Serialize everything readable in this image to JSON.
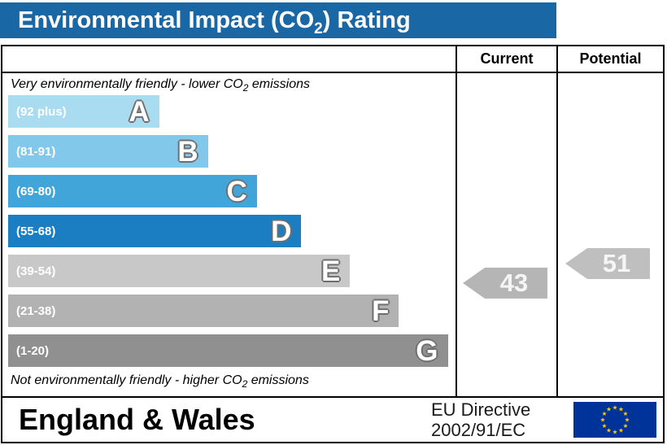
{
  "title": {
    "prefix": "Environmental Impact (CO",
    "sub": "2",
    "suffix": ") Rating"
  },
  "columns": {
    "current": "Current",
    "potential": "Potential"
  },
  "notes": {
    "top": {
      "prefix": "Very environmentally friendly - lower CO",
      "sub": "2",
      "suffix": " emissions"
    },
    "bottom": {
      "prefix": "Not environmentally friendly - higher CO",
      "sub": "2",
      "suffix": " emissions"
    }
  },
  "chart_data": {
    "type": "bar",
    "title": "Environmental Impact (CO2) Rating",
    "bands": [
      {
        "letter": "A",
        "range_label": "(92 plus)",
        "color": "#aadcf1",
        "width_pct": 34
      },
      {
        "letter": "B",
        "range_label": "(81-91)",
        "color": "#82c8ea",
        "width_pct": 45
      },
      {
        "letter": "C",
        "range_label": "(69-80)",
        "color": "#42a5da",
        "width_pct": 56
      },
      {
        "letter": "D",
        "range_label": "(55-68)",
        "color": "#1b7ec2",
        "width_pct": 66
      },
      {
        "letter": "E",
        "range_label": "(39-54)",
        "color": "#c8c8c8",
        "width_pct": 77
      },
      {
        "letter": "F",
        "range_label": "(21-38)",
        "color": "#b2b2b2",
        "width_pct": 88
      },
      {
        "letter": "G",
        "range_label": "(1-20)",
        "color": "#909090",
        "width_pct": 99
      }
    ],
    "current": {
      "label": "Current",
      "value": 43,
      "band": "E"
    },
    "potential": {
      "label": "Potential",
      "value": 51,
      "band": "E"
    }
  },
  "footer": {
    "region": "England & Wales",
    "directive_line1": "EU Directive",
    "directive_line2": "2002/91/EC"
  },
  "colors": {
    "title_bar_bg": "#1a67a5",
    "arrow": "#b5b5b5",
    "eu_flag_blue": "#003399",
    "eu_flag_star": "#ffcc00"
  }
}
